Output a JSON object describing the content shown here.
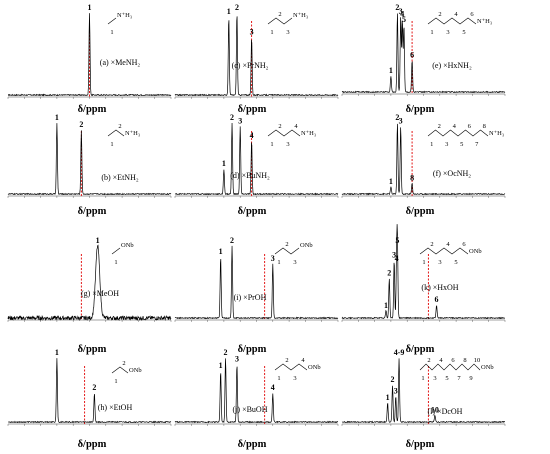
{
  "figure": {
    "xlabel": "δ/ppm",
    "colors": {
      "spectrum": "#000000",
      "reference_line": "#e00000",
      "background": "#ffffff"
    },
    "panels": [
      {
        "id": "a",
        "label": "(a) ×MeNH₂",
        "molecule_label": "N⁺H₃",
        "carbon_numbers": [
          "1"
        ],
        "peak_labels": [
          "1"
        ]
      },
      {
        "id": "b",
        "label": "(b) ×EtNH₂",
        "molecule_label": "N⁺H₃",
        "carbon_numbers": [
          "1",
          "2"
        ],
        "peak_labels": [
          "1",
          "2"
        ]
      },
      {
        "id": "c",
        "label": "(c) ×PrNH₂",
        "molecule_label": "N⁺H₃",
        "carbon_numbers": [
          "1",
          "2",
          "3"
        ],
        "peak_labels": [
          "1",
          "2",
          "3"
        ]
      },
      {
        "id": "d",
        "label": "(d) ×BuNH₂",
        "molecule_label": "N⁺H₃",
        "carbon_numbers": [
          "1",
          "2",
          "3",
          "4"
        ],
        "peak_labels": [
          "1",
          "2",
          "3",
          "4"
        ]
      },
      {
        "id": "e",
        "label": "(e) ×HxNH₂",
        "molecule_label": "N⁺H₃",
        "carbon_numbers": [
          "1",
          "2",
          "3",
          "4",
          "5",
          "6"
        ],
        "peak_labels": [
          "1",
          "2",
          "3",
          "4",
          "5",
          "6"
        ]
      },
      {
        "id": "f",
        "label": "(f) ×OcNH₂",
        "molecule_label": "N⁺H₃",
        "carbon_numbers": [
          "1",
          "2",
          "3",
          "4",
          "5",
          "6",
          "7",
          "8"
        ],
        "peak_labels": [
          "1",
          "2",
          "3",
          "8"
        ]
      },
      {
        "id": "g",
        "label": "(g) ×MeOH",
        "molecule_label": "ONb",
        "carbon_numbers": [
          "1"
        ],
        "peak_labels": [
          "1"
        ]
      },
      {
        "id": "h",
        "label": "(h) ×EtOH",
        "molecule_label": "ONb",
        "carbon_numbers": [
          "1",
          "2"
        ],
        "peak_labels": [
          "1",
          "2"
        ]
      },
      {
        "id": "i",
        "label": "(i) ×PrOH",
        "molecule_label": "ONb",
        "carbon_numbers": [
          "1",
          "2",
          "3"
        ],
        "peak_labels": [
          "1",
          "2",
          "3"
        ]
      },
      {
        "id": "j",
        "label": "(j) ×BuOH",
        "molecule_label": "ONb",
        "carbon_numbers": [
          "1",
          "2",
          "3",
          "4"
        ],
        "peak_labels": [
          "1",
          "2",
          "3",
          "4"
        ]
      },
      {
        "id": "k",
        "label": "(k) ×HxOH",
        "molecule_label": "ONb",
        "carbon_numbers": [
          "1",
          "2",
          "3",
          "4",
          "5",
          "6"
        ],
        "peak_labels": [
          "1",
          "2",
          "3",
          "4",
          "5",
          "6"
        ]
      },
      {
        "id": "l",
        "label": "(l) ×DcOH",
        "molecule_label": "ONb",
        "carbon_numbers": [
          "1",
          "2",
          "3",
          "4",
          "5",
          "6",
          "7",
          "8",
          "9",
          "10"
        ],
        "peak_labels": [
          "1",
          "2",
          "3",
          "4-9",
          "10"
        ]
      }
    ]
  },
  "chart_data": [
    {
      "type": "line",
      "panel": "a",
      "title": "(a) ×MeNH₂",
      "xlabel": "δ/ppm",
      "x_axis": "reversed",
      "peaks": [
        {
          "label": "1",
          "position": 0.5,
          "height": 1.0
        }
      ],
      "reference_line": 0.5
    },
    {
      "type": "line",
      "panel": "b",
      "title": "(b) ×EtNH₂",
      "xlabel": "δ/ppm",
      "x_axis": "reversed",
      "peaks": [
        {
          "label": "1",
          "position": 0.3,
          "height": 1.0
        },
        {
          "label": "2",
          "position": 0.45,
          "height": 0.9
        }
      ],
      "reference_line": 0.45
    },
    {
      "type": "line",
      "panel": "c",
      "title": "(c) ×PrNH₂",
      "xlabel": "δ/ppm",
      "x_axis": "reversed",
      "peaks": [
        {
          "label": "1",
          "position": 0.33,
          "height": 0.95
        },
        {
          "label": "2",
          "position": 0.38,
          "height": 1.0
        },
        {
          "label": "3",
          "position": 0.47,
          "height": 0.7
        }
      ],
      "reference_line": 0.47
    },
    {
      "type": "line",
      "panel": "d",
      "title": "(d) ×BuNH₂",
      "xlabel": "δ/ppm",
      "x_axis": "reversed",
      "peaks": [
        {
          "label": "1",
          "position": 0.3,
          "height": 0.35
        },
        {
          "label": "2",
          "position": 0.35,
          "height": 1.0
        },
        {
          "label": "3",
          "position": 0.4,
          "height": 0.95
        },
        {
          "label": "4",
          "position": 0.47,
          "height": 0.75
        }
      ],
      "reference_line": 0.47
    },
    {
      "type": "line",
      "panel": "e",
      "title": "(e) ×HxNH₂",
      "xlabel": "δ/ppm",
      "x_axis": "reversed",
      "peaks": [
        {
          "label": "1",
          "position": 0.3,
          "height": 0.2
        },
        {
          "label": "2",
          "position": 0.34,
          "height": 1.0
        },
        {
          "label": "3",
          "position": 0.36,
          "height": 0.95
        },
        {
          "label": "4",
          "position": 0.37,
          "height": 0.92
        },
        {
          "label": "5",
          "position": 0.38,
          "height": 0.85
        },
        {
          "label": "6",
          "position": 0.43,
          "height": 0.4
        }
      ],
      "reference_line": 0.43
    },
    {
      "type": "line",
      "panel": "f",
      "title": "(f) ×OcNH₂",
      "xlabel": "δ/ppm",
      "x_axis": "reversed",
      "peaks": [
        {
          "label": "1",
          "position": 0.3,
          "height": 0.1
        },
        {
          "label": "2",
          "position": 0.34,
          "height": 1.0
        },
        {
          "label": "3",
          "position": 0.36,
          "height": 0.95
        },
        {
          "label": "8",
          "position": 0.43,
          "height": 0.15
        }
      ],
      "reference_line": 0.43
    },
    {
      "type": "line",
      "panel": "g",
      "title": "(g) ×MeOH",
      "xlabel": "δ/ppm",
      "x_axis": "reversed",
      "peaks": [
        {
          "label": "1",
          "position": 0.55,
          "height": 1.0
        }
      ],
      "reference_line": 0.45
    },
    {
      "type": "line",
      "panel": "h",
      "title": "(h) ×EtOH",
      "xlabel": "δ/ppm",
      "x_axis": "reversed",
      "peaks": [
        {
          "label": "1",
          "position": 0.3,
          "height": 1.0
        },
        {
          "label": "2",
          "position": 0.53,
          "height": 0.45
        }
      ],
      "reference_line": 0.47
    },
    {
      "type": "line",
      "panel": "i",
      "title": "(i) ×PrOH",
      "xlabel": "δ/ppm",
      "x_axis": "reversed",
      "peaks": [
        {
          "label": "1",
          "position": 0.28,
          "height": 0.85
        },
        {
          "label": "2",
          "position": 0.35,
          "height": 1.0
        },
        {
          "label": "3",
          "position": 0.6,
          "height": 0.75
        }
      ],
      "reference_line": 0.55
    },
    {
      "type": "line",
      "panel": "j",
      "title": "(j) ×BuOH",
      "xlabel": "δ/ppm",
      "x_axis": "reversed",
      "peaks": [
        {
          "label": "1",
          "position": 0.28,
          "height": 0.8
        },
        {
          "label": "2",
          "position": 0.31,
          "height": 1.0
        },
        {
          "label": "3",
          "position": 0.38,
          "height": 0.9
        },
        {
          "label": "4",
          "position": 0.6,
          "height": 0.45
        }
      ],
      "reference_line": 0.55
    },
    {
      "type": "line",
      "panel": "k",
      "title": "(k) ×HxOH",
      "xlabel": "δ/ppm",
      "x_axis": "reversed",
      "peaks": [
        {
          "label": "1",
          "position": 0.27,
          "height": 0.1
        },
        {
          "label": "2",
          "position": 0.29,
          "height": 0.55
        },
        {
          "label": "3",
          "position": 0.32,
          "height": 0.8
        },
        {
          "label": "4",
          "position": 0.335,
          "height": 0.75
        },
        {
          "label": "5",
          "position": 0.34,
          "height": 1.0
        },
        {
          "label": "6",
          "position": 0.58,
          "height": 0.18
        }
      ],
      "reference_line": 0.53
    },
    {
      "type": "line",
      "panel": "l",
      "title": "(l) ×DcOH",
      "xlabel": "δ/ppm",
      "x_axis": "reversed",
      "peaks": [
        {
          "label": "1",
          "position": 0.28,
          "height": 0.3
        },
        {
          "label": "2",
          "position": 0.31,
          "height": 0.58
        },
        {
          "label": "3",
          "position": 0.33,
          "height": 0.4
        },
        {
          "label": "4-9",
          "position": 0.35,
          "height": 1.0
        },
        {
          "label": "10",
          "position": 0.57,
          "height": 0.1
        }
      ],
      "reference_line": 0.53
    }
  ]
}
